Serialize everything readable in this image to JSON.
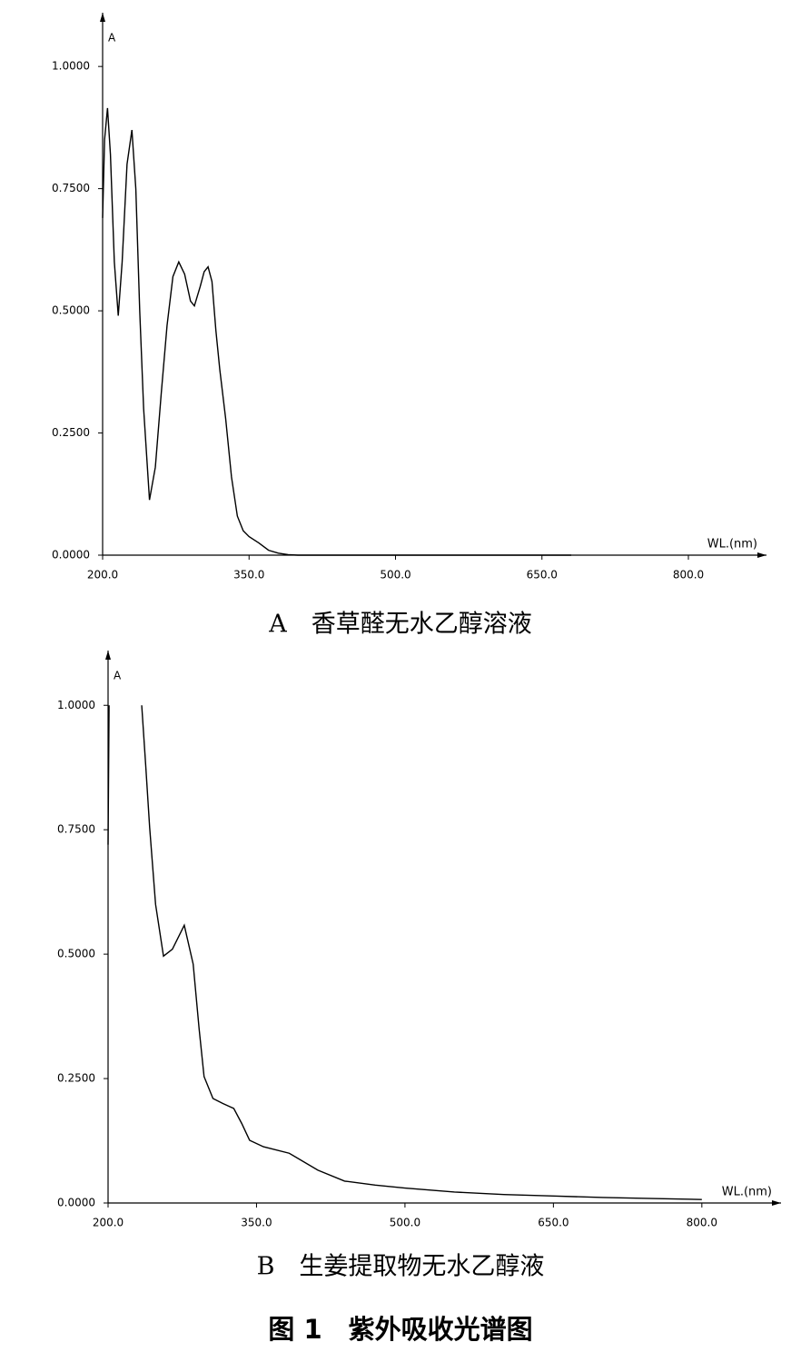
{
  "chart_data": [
    {
      "type": "line",
      "title": "A　香草醛无水乙醇溶液",
      "y_label": "A",
      "x_label": "WL.(nm)",
      "xlim": [
        200,
        880
      ],
      "ylim": [
        0,
        1.11
      ],
      "xticks": [
        {
          "value": 200,
          "label": "200.0"
        },
        {
          "value": 350,
          "label": "350.0"
        },
        {
          "value": 500,
          "label": "500.0"
        },
        {
          "value": 650,
          "label": "650.0"
        },
        {
          "value": 800,
          "label": "800.0"
        }
      ],
      "yticks": [
        {
          "value": 0,
          "label": "0.0000"
        },
        {
          "value": 0.25,
          "label": "0.2500"
        },
        {
          "value": 0.5,
          "label": "0.5000"
        },
        {
          "value": 0.75,
          "label": "0.7500"
        },
        {
          "value": 1,
          "label": "1.0000"
        }
      ],
      "x": [
        200,
        202,
        205,
        208,
        212,
        216,
        220,
        225,
        230,
        234,
        238,
        242,
        248,
        254,
        260,
        266,
        272,
        278,
        284,
        290,
        294,
        300,
        304,
        308,
        312,
        316,
        320,
        326,
        332,
        338,
        344,
        350,
        360,
        370,
        380,
        390,
        400,
        450,
        500,
        550,
        600,
        650,
        680
      ],
      "series": [
        {
          "color": "#000000",
          "values": [
            0.69,
            0.85,
            0.915,
            0.82,
            0.6,
            0.49,
            0.6,
            0.8,
            0.87,
            0.75,
            0.5,
            0.3,
            0.113,
            0.18,
            0.33,
            0.47,
            0.57,
            0.6,
            0.575,
            0.52,
            0.51,
            0.55,
            0.58,
            0.59,
            0.56,
            0.46,
            0.38,
            0.28,
            0.16,
            0.08,
            0.05,
            0.038,
            0.025,
            0.01,
            0.004,
            0.001,
            0,
            0,
            0,
            0,
            0,
            0,
            0
          ]
        }
      ]
    },
    {
      "type": "line",
      "title": "B　生姜提取物无水乙醇液",
      "y_label": "A",
      "x_label": "WL.(nm)",
      "xlim": [
        200,
        880
      ],
      "ylim": [
        0,
        1.11
      ],
      "xticks": [
        {
          "value": 200,
          "label": "200.0"
        },
        {
          "value": 350,
          "label": "350.0"
        },
        {
          "value": 500,
          "label": "500.0"
        },
        {
          "value": 650,
          "label": "650.0"
        },
        {
          "value": 800,
          "label": "800.0"
        }
      ],
      "yticks": [
        {
          "value": 0,
          "label": "0.0000"
        },
        {
          "value": 0.25,
          "label": "0.2500"
        },
        {
          "value": 0.5,
          "label": "0.5000"
        },
        {
          "value": 0.75,
          "label": "0.7500"
        },
        {
          "value": 1,
          "label": "1.0000"
        }
      ],
      "x": [
        200,
        201,
        202,
        234,
        238,
        242,
        248,
        256,
        265,
        277,
        286,
        292,
        297,
        306,
        316,
        327,
        335,
        343,
        357,
        383,
        412,
        439,
        470,
        500,
        550,
        600,
        650,
        700,
        750,
        800
      ],
      "series": [
        {
          "color": "#000000",
          "values": [
            0.72,
            1.0,
            null,
            1.0,
            0.88,
            0.755,
            0.6,
            0.496,
            0.51,
            0.558,
            0.48,
            0.35,
            0.254,
            0.21,
            0.2,
            0.19,
            0.16,
            0.126,
            0.113,
            0.1,
            0.066,
            0.044,
            0.036,
            0.03,
            0.022,
            0.017,
            0.014,
            0.011,
            0.009,
            0.007
          ]
        }
      ]
    }
  ],
  "figure_caption": "图 1　紫外吸收光谱图"
}
